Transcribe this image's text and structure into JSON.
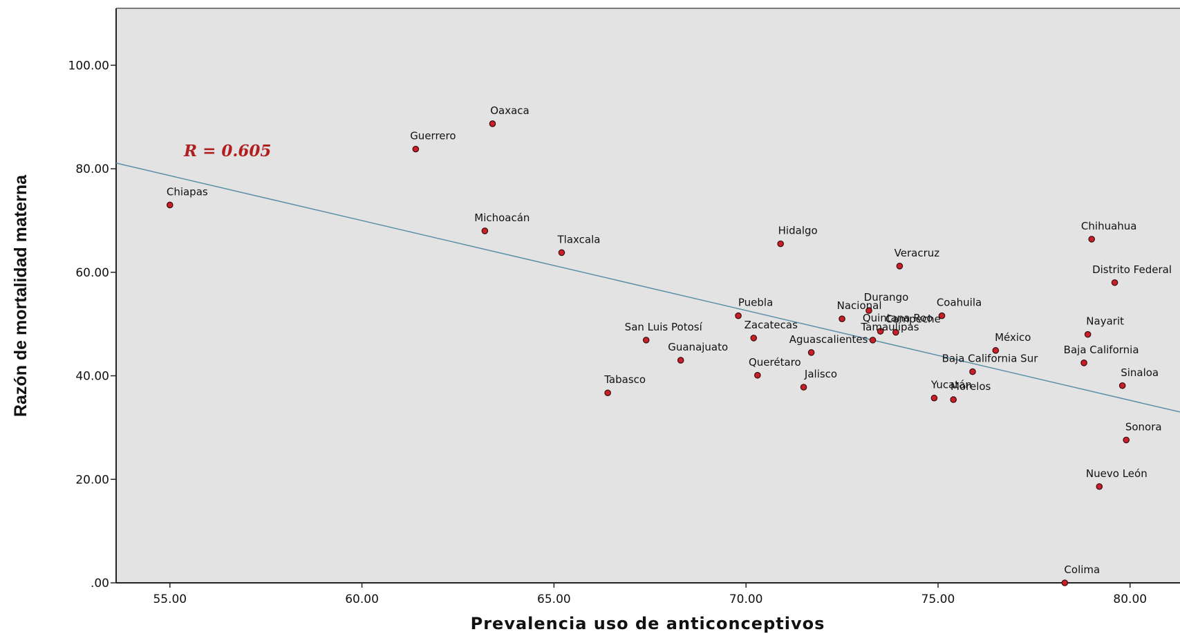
{
  "chart_data": {
    "type": "scatter",
    "xlabel": "Prevalencia uso de anticonceptivos",
    "ylabel": "Razón de mortalidad materna",
    "xlim": [
      53.6,
      81.3
    ],
    "ylim": [
      0,
      111
    ],
    "x_ticks": [
      55,
      60,
      65,
      70,
      75,
      80
    ],
    "x_tick_labels": [
      "55.00",
      "60.00",
      "65.00",
      "70.00",
      "75.00",
      "80.00"
    ],
    "y_ticks": [
      0,
      20,
      40,
      60,
      80,
      100
    ],
    "y_tick_labels": [
      ".00",
      "20.00",
      "40.00",
      "60.00",
      "80.00",
      "100.00"
    ],
    "annotation": "R = 0.605",
    "plot_background": "#e3e3e3",
    "point_color": "#c8202a",
    "line_color": "#5a8fa8",
    "fit_line": {
      "x": [
        53.6,
        81.3
      ],
      "y": [
        81.1,
        33.0
      ]
    },
    "points": [
      {
        "label": "Chiapas",
        "x": 55.0,
        "y": 73.0
      },
      {
        "label": "Guerrero",
        "x": 61.4,
        "y": 83.8
      },
      {
        "label": "Oaxaca",
        "x": 63.4,
        "y": 88.7
      },
      {
        "label": "Michoacán",
        "x": 63.2,
        "y": 68.0
      },
      {
        "label": "Tlaxcala",
        "x": 65.2,
        "y": 63.8
      },
      {
        "label": "Hidalgo",
        "x": 70.9,
        "y": 65.5
      },
      {
        "label": "Veracruz",
        "x": 74.0,
        "y": 61.2
      },
      {
        "label": "Chihuahua",
        "x": 79.0,
        "y": 66.4
      },
      {
        "label": "Distrito Federal",
        "x": 79.6,
        "y": 58.0
      },
      {
        "label": "Puebla",
        "x": 69.8,
        "y": 51.6
      },
      {
        "label": "Nacional",
        "x": 72.5,
        "y": 51.0
      },
      {
        "label": "Durango",
        "x": 73.2,
        "y": 52.6
      },
      {
        "label": "Coahuila",
        "x": 75.1,
        "y": 51.6
      },
      {
        "label": "San Luis Potosí",
        "x": 67.4,
        "y": 46.9
      },
      {
        "label": "Zacatecas",
        "x": 70.2,
        "y": 47.3
      },
      {
        "label": "Quintana Roo",
        "x": 73.5,
        "y": 48.6
      },
      {
        "label": "Campeche",
        "x": 73.9,
        "y": 48.4
      },
      {
        "label": "Tamaulipas",
        "x": 73.3,
        "y": 46.9
      },
      {
        "label": "México",
        "x": 76.5,
        "y": 44.9
      },
      {
        "label": "Nayarit",
        "x": 78.9,
        "y": 48.0
      },
      {
        "label": "Guanajuato",
        "x": 68.3,
        "y": 43.0
      },
      {
        "label": "Aguascalientes",
        "x": 71.7,
        "y": 44.5
      },
      {
        "label": "Baja California",
        "x": 78.8,
        "y": 42.5
      },
      {
        "label": "Querétaro",
        "x": 70.3,
        "y": 40.1
      },
      {
        "label": "Baja California Sur",
        "x": 75.9,
        "y": 40.8
      },
      {
        "label": "Jalisco",
        "x": 71.5,
        "y": 37.8
      },
      {
        "label": "Sinaloa",
        "x": 79.8,
        "y": 38.1
      },
      {
        "label": "Tabasco",
        "x": 66.4,
        "y": 36.7
      },
      {
        "label": "Morelos",
        "x": 75.4,
        "y": 35.4
      },
      {
        "label": "Yucatán",
        "x": 74.9,
        "y": 35.7
      },
      {
        "label": "Sonora",
        "x": 79.9,
        "y": 27.6
      },
      {
        "label": "Nuevo León",
        "x": 79.2,
        "y": 18.6
      },
      {
        "label": "Colima",
        "x": 78.3,
        "y": 0.0
      }
    ]
  }
}
